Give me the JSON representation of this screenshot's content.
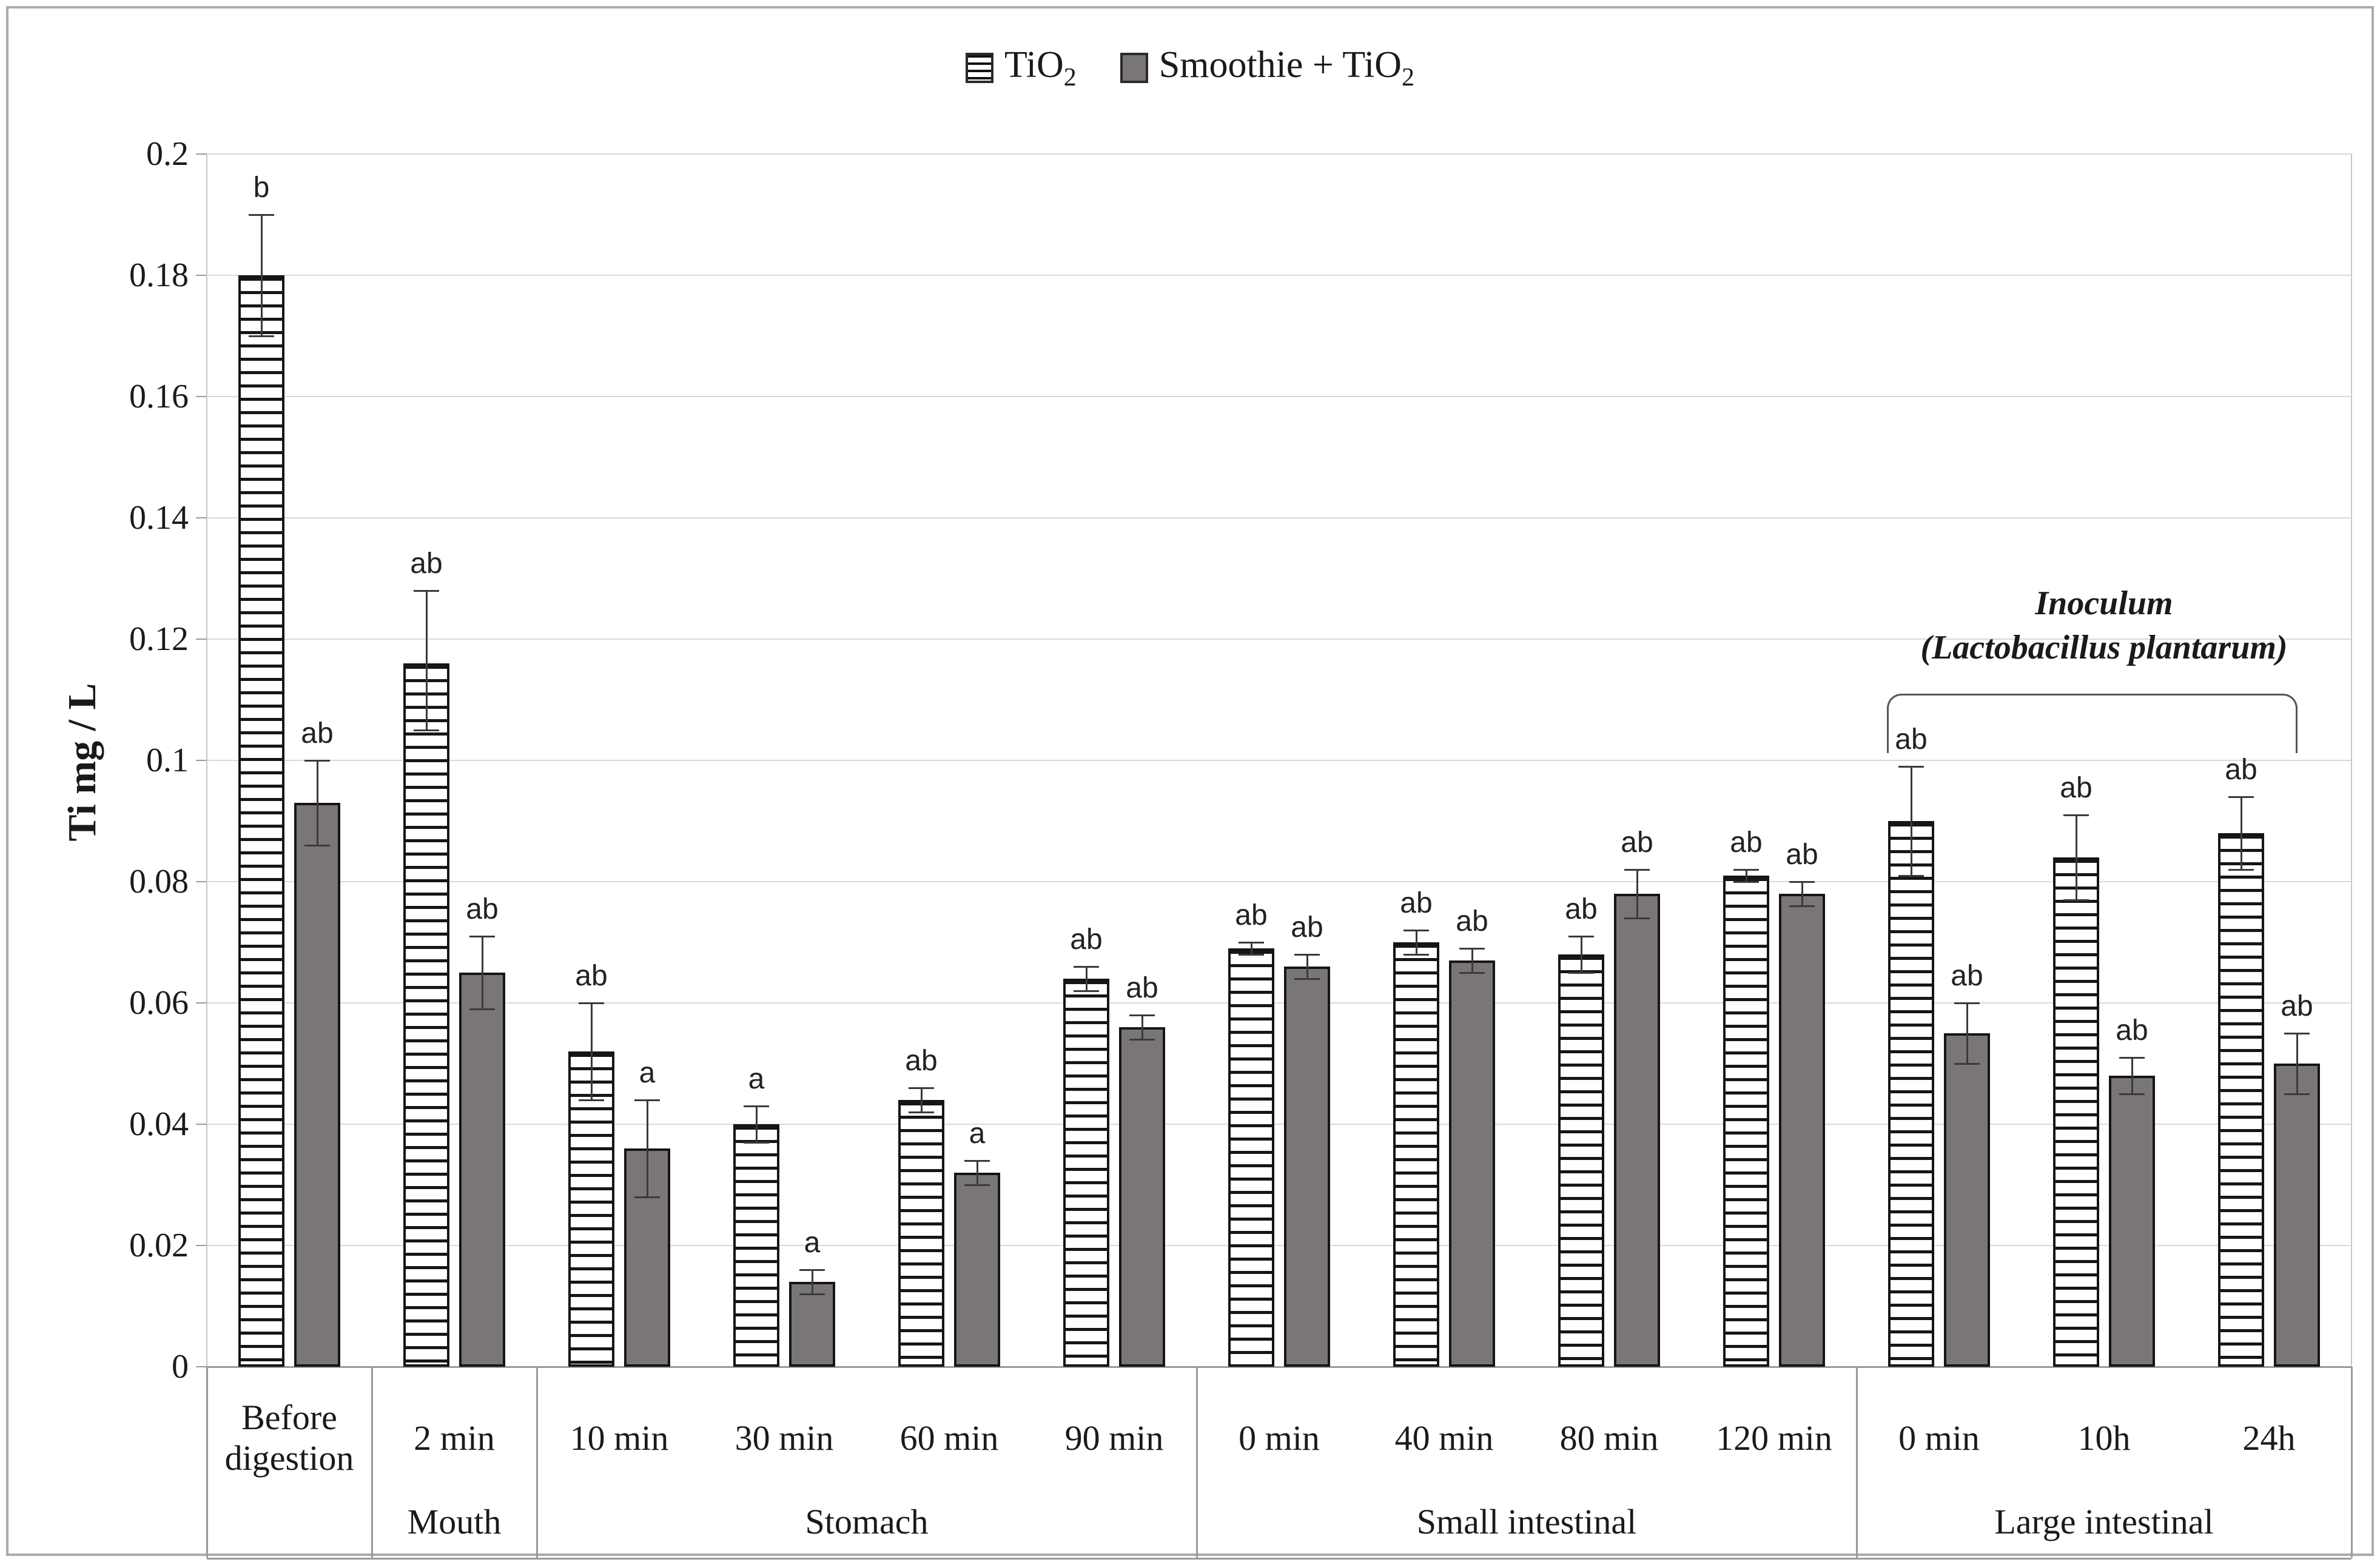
{
  "legend": {
    "items": [
      {
        "text": "TiO",
        "sub": "2",
        "swatch": "hatched"
      },
      {
        "text": "Smoothie + TiO",
        "sub": "2",
        "swatch": "solid"
      }
    ]
  },
  "colors": {
    "smoothie_bar": "#7b7676",
    "hatched_bar_line": "#161616",
    "bar_border": "#151515",
    "gridline": "#d9d9d9",
    "axis": "#9a9a9a"
  },
  "chart_data": {
    "type": "bar",
    "title": "",
    "ylabel": "Ti  mg / L",
    "ylim": [
      0,
      0.2
    ],
    "ytick_step": 0.02,
    "yticks": [
      "0",
      "0.02",
      "0.04",
      "0.06",
      "0.08",
      "0.1",
      "0.12",
      "0.14",
      "0.16",
      "0.18",
      "0.2"
    ],
    "grid": true,
    "legend_position": "top-center",
    "groups": [
      {
        "label": "",
        "categories": [
          "Before digestion"
        ]
      },
      {
        "label": "Mouth",
        "categories": [
          "2 min"
        ]
      },
      {
        "label": "Stomach",
        "categories": [
          "10 min",
          "30 min",
          "60 min",
          "90 min"
        ]
      },
      {
        "label": "Small intestinal",
        "categories": [
          "0 min",
          "40 min",
          "80 min",
          "120 min"
        ]
      },
      {
        "label": "Large intestinal",
        "categories": [
          "0 min",
          "10h",
          "24h"
        ]
      }
    ],
    "categories": [
      "Before digestion",
      "2 min",
      "10 min",
      "30 min",
      "60 min",
      "90 min",
      "0 min",
      "40 min",
      "80 min",
      "120 min",
      "0 min",
      "10h",
      "24h"
    ],
    "series": [
      {
        "name": "TiO2",
        "fill": "hatched-horizontal",
        "values": [
          0.18,
          0.116,
          0.052,
          0.04,
          0.044,
          0.064,
          0.069,
          0.07,
          0.068,
          0.081,
          0.09,
          0.084,
          0.088
        ],
        "err_high": [
          0.19,
          0.128,
          0.06,
          0.043,
          0.046,
          0.066,
          0.07,
          0.072,
          0.071,
          0.082,
          0.099,
          0.091,
          0.094
        ],
        "err_low": [
          0.17,
          0.105,
          0.044,
          0.037,
          0.042,
          0.062,
          0.068,
          0.068,
          0.065,
          0.08,
          0.081,
          0.077,
          0.082
        ],
        "letters": [
          "b",
          "ab",
          "ab",
          "a",
          "ab",
          "ab",
          "ab",
          "ab",
          "ab",
          "ab",
          "ab",
          "ab",
          "ab"
        ]
      },
      {
        "name": "Smoothie + TiO2",
        "fill": "solid",
        "color": "#7b7676",
        "values": [
          0.093,
          0.065,
          0.036,
          0.014,
          0.032,
          0.056,
          0.066,
          0.067,
          0.078,
          0.078,
          0.055,
          0.048,
          0.05
        ],
        "err_high": [
          0.1,
          0.071,
          0.044,
          0.016,
          0.034,
          0.058,
          0.068,
          0.069,
          0.082,
          0.08,
          0.06,
          0.051,
          0.055
        ],
        "err_low": [
          0.086,
          0.059,
          0.028,
          0.012,
          0.03,
          0.054,
          0.064,
          0.065,
          0.074,
          0.076,
          0.05,
          0.045,
          0.045
        ],
        "letters": [
          "ab",
          "ab",
          "a",
          "a",
          "a",
          "ab",
          "ab",
          "ab",
          "ab",
          "ab",
          "ab",
          "ab",
          "ab"
        ]
      }
    ],
    "annotation": {
      "line1": "Inoculum",
      "line2": "(Lactobacillus plantarum)",
      "group_index": 4
    }
  }
}
